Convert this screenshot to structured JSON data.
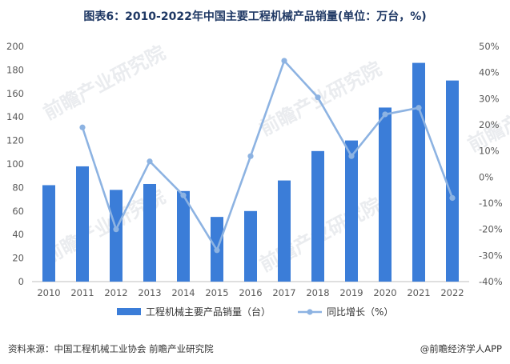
{
  "title": "图表6：2010-2022年中国主要工程机械产品销量(单位：万台，%)",
  "source": "资料来源：中国工程机械工业协会 前瞻产业研究院",
  "credit": "@前瞻经济学人APP",
  "watermark": "前瞻产业研究院",
  "colors": {
    "bar": "#3b7dd8",
    "line": "#8db3e2",
    "axis": "#bfbfbf"
  },
  "chart_data": {
    "type": "bar",
    "categories": [
      "2010",
      "2011",
      "2012",
      "2013",
      "2014",
      "2015",
      "2016",
      "2017",
      "2018",
      "2019",
      "2020",
      "2021",
      "2022"
    ],
    "series": [
      {
        "name": "工程机械主要产品销量（台）",
        "type": "bar",
        "axis": "left",
        "values": [
          82,
          98,
          78,
          83,
          77,
          55,
          60,
          86,
          111,
          120,
          148,
          186,
          171
        ]
      },
      {
        "name": "同比增长（%）",
        "type": "line",
        "axis": "right",
        "values": [
          null,
          19,
          -20,
          6,
          -7,
          -28,
          8,
          44.5,
          30.5,
          8,
          24,
          26.5,
          -8
        ]
      }
    ],
    "y_left": {
      "range": [
        0,
        200
      ],
      "ticks": [
        "0",
        "20",
        "40",
        "60",
        "80",
        "100",
        "120",
        "140",
        "160",
        "180",
        "200"
      ]
    },
    "y_right": {
      "range": [
        -40,
        50
      ],
      "ticks": [
        "-40%",
        "-30%",
        "-20%",
        "-10%",
        "0%",
        "10%",
        "20%",
        "30%",
        "40%",
        "50%"
      ]
    },
    "legend_position": "bottom",
    "grid": false
  }
}
